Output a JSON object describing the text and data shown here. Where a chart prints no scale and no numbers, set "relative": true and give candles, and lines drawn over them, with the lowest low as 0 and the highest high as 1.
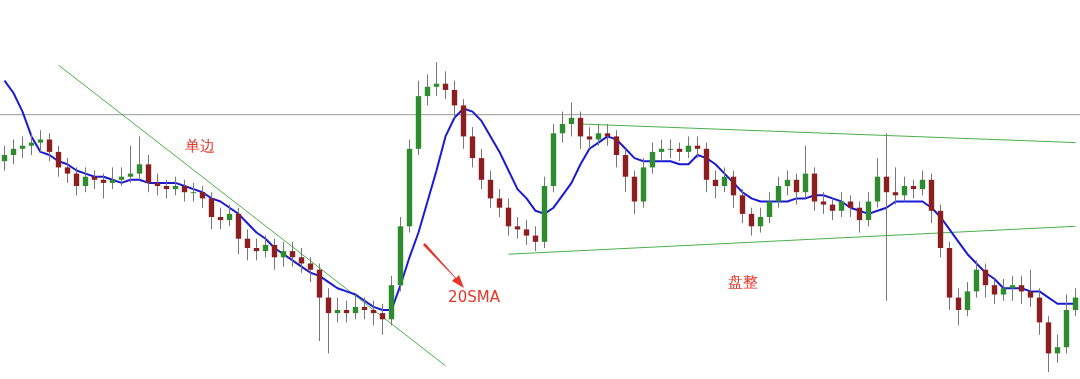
{
  "chart_data": {
    "type": "candlestick",
    "relative": true,
    "tick_labels": false,
    "categories": [
      null,
      null,
      null,
      null,
      null,
      null,
      null,
      null,
      null,
      null,
      null,
      null,
      null,
      null,
      null,
      null,
      null,
      null,
      null,
      null,
      null,
      null,
      null,
      null,
      null,
      null,
      null,
      null,
      null,
      null,
      null,
      null,
      null,
      null,
      null,
      null,
      null,
      null,
      null,
      null,
      null,
      null,
      null,
      null,
      null,
      null,
      null,
      null,
      null,
      null,
      null,
      null,
      null,
      null,
      null,
      null,
      null,
      null,
      null,
      null,
      null,
      null,
      null,
      null,
      null,
      null,
      null,
      null,
      null,
      null,
      null,
      null,
      null,
      null,
      null,
      null,
      null,
      null,
      null,
      null,
      null,
      null,
      null,
      null,
      null,
      null,
      null,
      null,
      null,
      null,
      null,
      null,
      null,
      null,
      null,
      null,
      null,
      null,
      null,
      null,
      null,
      null,
      null,
      null,
      null,
      null,
      null,
      null,
      null,
      null,
      null,
      null,
      null,
      null,
      null,
      null,
      null,
      null,
      null,
      null
    ],
    "ohlc": [
      [
        0.68,
        0.73,
        0.65,
        0.7
      ],
      [
        0.7,
        0.75,
        0.67,
        0.72
      ],
      [
        0.72,
        0.76,
        0.69,
        0.73
      ],
      [
        0.73,
        0.77,
        0.7,
        0.74
      ],
      [
        0.74,
        0.78,
        0.71,
        0.75
      ],
      [
        0.75,
        0.77,
        0.68,
        0.71
      ],
      [
        0.71,
        0.73,
        0.63,
        0.66
      ],
      [
        0.66,
        0.69,
        0.61,
        0.64
      ],
      [
        0.64,
        0.66,
        0.57,
        0.6
      ],
      [
        0.6,
        0.66,
        0.58,
        0.63
      ],
      [
        0.63,
        0.65,
        0.59,
        0.62
      ],
      [
        0.62,
        0.64,
        0.56,
        0.61
      ],
      [
        0.61,
        0.66,
        0.59,
        0.62
      ],
      [
        0.62,
        0.66,
        0.6,
        0.63
      ],
      [
        0.63,
        0.73,
        0.61,
        0.64
      ],
      [
        0.64,
        0.76,
        0.62,
        0.67
      ],
      [
        0.67,
        0.7,
        0.58,
        0.61
      ],
      [
        0.61,
        0.64,
        0.57,
        0.6
      ],
      [
        0.6,
        0.62,
        0.56,
        0.59
      ],
      [
        0.59,
        0.63,
        0.57,
        0.6
      ],
      [
        0.6,
        0.62,
        0.55,
        0.58
      ],
      [
        0.58,
        0.61,
        0.55,
        0.58
      ],
      [
        0.58,
        0.6,
        0.53,
        0.56
      ],
      [
        0.56,
        0.58,
        0.46,
        0.5
      ],
      [
        0.5,
        0.53,
        0.46,
        0.49
      ],
      [
        0.49,
        0.54,
        0.47,
        0.51
      ],
      [
        0.51,
        0.53,
        0.38,
        0.43
      ],
      [
        0.43,
        0.46,
        0.36,
        0.4
      ],
      [
        0.4,
        0.43,
        0.36,
        0.39
      ],
      [
        0.39,
        0.44,
        0.37,
        0.41
      ],
      [
        0.41,
        0.43,
        0.33,
        0.37
      ],
      [
        0.37,
        0.42,
        0.34,
        0.39
      ],
      [
        0.39,
        0.42,
        0.34,
        0.37
      ],
      [
        0.37,
        0.4,
        0.32,
        0.35
      ],
      [
        0.35,
        0.37,
        0.29,
        0.33
      ],
      [
        0.33,
        0.35,
        0.1,
        0.24
      ],
      [
        0.24,
        0.27,
        0.06,
        0.19
      ],
      [
        0.19,
        0.24,
        0.16,
        0.2
      ],
      [
        0.2,
        0.23,
        0.16,
        0.19
      ],
      [
        0.19,
        0.25,
        0.17,
        0.21
      ],
      [
        0.21,
        0.24,
        0.17,
        0.2
      ],
      [
        0.2,
        0.23,
        0.15,
        0.19
      ],
      [
        0.19,
        0.22,
        0.12,
        0.17
      ],
      [
        0.17,
        0.31,
        0.15,
        0.28
      ],
      [
        0.28,
        0.5,
        0.26,
        0.47
      ],
      [
        0.47,
        0.75,
        0.45,
        0.72
      ],
      [
        0.72,
        0.94,
        0.7,
        0.89
      ],
      [
        0.89,
        0.96,
        0.86,
        0.92
      ],
      [
        0.92,
        1,
        0.89,
        0.93
      ],
      [
        0.93,
        0.97,
        0.88,
        0.91
      ],
      [
        0.91,
        0.94,
        0.82,
        0.86
      ],
      [
        0.86,
        0.88,
        0.72,
        0.76
      ],
      [
        0.76,
        0.79,
        0.66,
        0.69
      ],
      [
        0.69,
        0.72,
        0.59,
        0.62
      ],
      [
        0.62,
        0.65,
        0.53,
        0.56
      ],
      [
        0.56,
        0.59,
        0.5,
        0.53
      ],
      [
        0.53,
        0.56,
        0.44,
        0.47
      ],
      [
        0.47,
        0.5,
        0.43,
        0.46
      ],
      [
        0.46,
        0.49,
        0.41,
        0.44
      ],
      [
        0.44,
        0.47,
        0.39,
        0.42
      ],
      [
        0.42,
        0.63,
        0.4,
        0.6
      ],
      [
        0.6,
        0.8,
        0.58,
        0.77
      ],
      [
        0.77,
        0.84,
        0.74,
        0.8
      ],
      [
        0.8,
        0.87,
        0.76,
        0.82
      ],
      [
        0.82,
        0.84,
        0.72,
        0.76
      ],
      [
        0.76,
        0.79,
        0.72,
        0.75
      ],
      [
        0.75,
        0.8,
        0.73,
        0.77
      ],
      [
        0.77,
        0.8,
        0.73,
        0.76
      ],
      [
        0.76,
        0.78,
        0.66,
        0.7
      ],
      [
        0.7,
        0.72,
        0.58,
        0.63
      ],
      [
        0.63,
        0.65,
        0.51,
        0.55
      ],
      [
        0.55,
        0.69,
        0.53,
        0.66
      ],
      [
        0.66,
        0.74,
        0.64,
        0.71
      ],
      [
        0.71,
        0.75,
        0.68,
        0.72
      ],
      [
        0.72,
        0.75,
        0.69,
        0.72
      ],
      [
        0.72,
        0.74,
        0.68,
        0.71
      ],
      [
        0.71,
        0.76,
        0.69,
        0.73
      ],
      [
        0.73,
        0.76,
        0.69,
        0.72
      ],
      [
        0.72,
        0.74,
        0.58,
        0.62
      ],
      [
        0.62,
        0.65,
        0.56,
        0.6
      ],
      [
        0.6,
        0.66,
        0.58,
        0.63
      ],
      [
        0.63,
        0.65,
        0.53,
        0.57
      ],
      [
        0.57,
        0.59,
        0.48,
        0.51
      ],
      [
        0.51,
        0.53,
        0.44,
        0.47
      ],
      [
        0.47,
        0.53,
        0.45,
        0.5
      ],
      [
        0.5,
        0.58,
        0.48,
        0.55
      ],
      [
        0.55,
        0.63,
        0.53,
        0.6
      ],
      [
        0.6,
        0.65,
        0.57,
        0.62
      ],
      [
        0.62,
        0.64,
        0.54,
        0.58
      ],
      [
        0.58,
        0.73,
        0.56,
        0.64
      ],
      [
        0.64,
        0.66,
        0.52,
        0.55
      ],
      [
        0.55,
        0.58,
        0.51,
        0.54
      ],
      [
        0.54,
        0.56,
        0.49,
        0.52
      ],
      [
        0.52,
        0.58,
        0.5,
        0.55
      ],
      [
        0.55,
        0.57,
        0.5,
        0.53
      ],
      [
        0.53,
        0.55,
        0.45,
        0.49
      ],
      [
        0.49,
        0.58,
        0.47,
        0.55
      ],
      [
        0.55,
        0.69,
        0.53,
        0.63
      ],
      [
        0.63,
        0.77,
        0.23,
        0.58
      ],
      [
        0.58,
        0.66,
        0.54,
        0.57
      ],
      [
        0.57,
        0.63,
        0.55,
        0.6
      ],
      [
        0.6,
        0.62,
        0.56,
        0.59
      ],
      [
        0.59,
        0.65,
        0.57,
        0.62
      ],
      [
        0.62,
        0.64,
        0.48,
        0.52
      ],
      [
        0.52,
        0.54,
        0.37,
        0.4
      ],
      [
        0.4,
        0.42,
        0.2,
        0.24
      ],
      [
        0.24,
        0.27,
        0.15,
        0.2
      ],
      [
        0.2,
        0.29,
        0.18,
        0.26
      ],
      [
        0.26,
        0.36,
        0.24,
        0.33
      ],
      [
        0.33,
        0.35,
        0.24,
        0.28
      ],
      [
        0.28,
        0.3,
        0.22,
        0.25
      ],
      [
        0.25,
        0.3,
        0.23,
        0.27
      ],
      [
        0.27,
        0.31,
        0.23,
        0.28
      ],
      [
        0.28,
        0.31,
        0.22,
        0.26
      ],
      [
        0.26,
        0.33,
        0.21,
        0.24
      ],
      [
        0.24,
        0.27,
        0.12,
        0.16
      ],
      [
        0.16,
        0.18,
        0,
        0.06
      ],
      [
        0.06,
        0.12,
        0.03,
        0.08
      ],
      [
        0.08,
        0.25,
        0.06,
        0.2
      ],
      [
        0.2,
        0.27,
        0.18,
        0.24
      ]
    ],
    "colors": [
      "#2e8b2e",
      "#2e8b2e",
      "#2e8b2e",
      "#2e8b2e",
      "#2e8b2e",
      "#8b1e1e",
      "#8b1e1e",
      "#8b1e1e",
      "#8b1e1e",
      "#2e8b2e",
      "#8b1e1e",
      "#8b1e1e",
      "#2e8b2e",
      "#2e8b2e",
      "#2e8b2e",
      "#2e8b2e",
      "#8b1e1e",
      "#8b1e1e",
      "#8b1e1e",
      "#2e8b2e",
      "#8b1e1e",
      "#2e8b2e",
      "#8b1e1e",
      "#8b1e1e",
      "#8b1e1e",
      "#2e8b2e",
      "#8b1e1e",
      "#8b1e1e",
      "#8b1e1e",
      "#2e8b2e",
      "#8b1e1e",
      "#2e8b2e",
      "#8b1e1e",
      "#8b1e1e",
      "#8b1e1e",
      "#8b1e1e",
      "#8b1e1e",
      "#2e8b2e",
      "#8b1e1e",
      "#2e8b2e",
      "#8b1e1e",
      "#8b1e1e",
      "#8b1e1e",
      "#2e8b2e",
      "#2e8b2e",
      "#2e8b2e",
      "#2e8b2e",
      "#2e8b2e",
      "#2e8b2e",
      "#8b1e1e",
      "#8b1e1e",
      "#8b1e1e",
      "#8b1e1e",
      "#8b1e1e",
      "#8b1e1e",
      "#8b1e1e",
      "#8b1e1e",
      "#8b1e1e",
      "#8b1e1e",
      "#8b1e1e",
      "#2e8b2e",
      "#2e8b2e",
      "#2e8b2e",
      "#2e8b2e",
      "#8b1e1e",
      "#8b1e1e",
      "#2e8b2e",
      "#8b1e1e",
      "#8b1e1e",
      "#8b1e1e",
      "#8b1e1e",
      "#2e8b2e",
      "#2e8b2e",
      "#2e8b2e",
      "#2e8b2e",
      "#8b1e1e",
      "#2e8b2e",
      "#8b1e1e",
      "#8b1e1e",
      "#8b1e1e",
      "#2e8b2e",
      "#8b1e1e",
      "#8b1e1e",
      "#8b1e1e",
      "#2e8b2e",
      "#2e8b2e",
      "#2e8b2e",
      "#2e8b2e",
      "#8b1e1e",
      "#2e8b2e",
      "#8b1e1e",
      "#8b1e1e",
      "#8b1e1e",
      "#2e8b2e",
      "#8b1e1e",
      "#8b1e1e",
      "#2e8b2e",
      "#2e8b2e",
      "#8b1e1e",
      "#8b1e1e",
      "#2e8b2e",
      "#8b1e1e",
      "#2e8b2e",
      "#8b1e1e",
      "#8b1e1e",
      "#8b1e1e",
      "#8b1e1e",
      "#2e8b2e",
      "#2e8b2e",
      "#8b1e1e",
      "#8b1e1e",
      "#2e8b2e",
      "#2e8b2e",
      "#8b1e1e",
      "#8b1e1e",
      "#8b1e1e",
      "#8b1e1e",
      "#2e8b2e",
      "#2e8b2e",
      "#2e8b2e"
    ],
    "series": [
      {
        "type": "line",
        "name": "20SMA",
        "color": "#1a1ad6",
        "values": [
          0.94,
          0.9,
          0.84,
          0.76,
          0.71,
          0.7,
          0.68,
          0.67,
          0.65,
          0.64,
          0.63,
          0.63,
          0.62,
          0.61,
          0.62,
          0.62,
          0.61,
          0.61,
          0.61,
          0.61,
          0.6,
          0.59,
          0.58,
          0.56,
          0.55,
          0.53,
          0.51,
          0.48,
          0.45,
          0.43,
          0.4,
          0.38,
          0.36,
          0.34,
          0.32,
          0.31,
          0.29,
          0.27,
          0.26,
          0.25,
          0.23,
          0.21,
          0.2,
          0.2,
          0.28,
          0.37,
          0.45,
          0.55,
          0.65,
          0.76,
          0.82,
          0.85,
          0.84,
          0.81,
          0.76,
          0.71,
          0.65,
          0.59,
          0.56,
          0.52,
          0.51,
          0.53,
          0.57,
          0.61,
          0.67,
          0.72,
          0.74,
          0.76,
          0.75,
          0.72,
          0.69,
          0.68,
          0.68,
          0.68,
          0.68,
          0.67,
          0.67,
          0.7,
          0.69,
          0.67,
          0.64,
          0.61,
          0.58,
          0.56,
          0.55,
          0.55,
          0.55,
          0.55,
          0.56,
          0.56,
          0.57,
          0.57,
          0.56,
          0.55,
          0.53,
          0.52,
          0.51,
          0.52,
          0.53,
          0.55,
          0.55,
          0.55,
          0.55,
          0.53,
          0.5,
          0.46,
          0.42,
          0.38,
          0.35,
          0.32,
          0.3,
          0.27,
          0.27,
          0.27,
          0.26,
          0.26,
          0.24,
          0.22,
          0.22,
          0.22
        ]
      },
      {
        "type": "line",
        "color": "#4caf4c",
        "values": [
          null,
          null,
          null,
          null,
          null,
          null,
          0.99,
          null,
          null,
          null,
          null,
          null,
          null,
          null,
          null,
          null,
          null,
          null,
          null,
          null,
          null,
          null,
          null,
          null,
          null,
          null,
          null,
          null,
          null,
          null,
          null,
          null,
          null,
          null,
          null,
          null,
          null,
          null,
          null,
          null,
          null,
          null,
          null,
          null,
          null,
          null,
          null,
          null,
          null,
          0.02,
          null,
          null,
          null,
          null,
          null,
          null,
          null,
          null,
          null,
          null,
          null,
          null,
          null,
          null,
          null,
          null,
          null,
          null,
          null,
          null,
          null,
          null,
          null,
          null,
          null,
          null,
          null,
          null,
          null,
          null,
          null,
          null,
          null,
          null,
          null,
          null,
          null,
          null,
          null,
          null,
          null,
          null,
          null,
          null,
          null,
          null,
          null,
          null,
          null,
          null,
          null,
          null,
          null,
          null,
          null,
          null,
          null,
          null,
          null,
          null,
          null,
          null,
          null,
          null,
          null,
          null,
          null,
          null,
          null,
          null
        ]
      },
      {
        "type": "line",
        "color": "#4caf4c",
        "values": [
          null,
          null,
          null,
          null,
          null,
          null,
          null,
          null,
          null,
          null,
          null,
          null,
          null,
          null,
          null,
          null,
          null,
          null,
          null,
          null,
          null,
          null,
          null,
          null,
          null,
          null,
          null,
          null,
          null,
          null,
          null,
          null,
          null,
          null,
          null,
          null,
          null,
          null,
          null,
          null,
          null,
          null,
          null,
          null,
          null,
          null,
          null,
          null,
          null,
          null,
          null,
          null,
          null,
          null,
          null,
          null,
          null,
          null,
          null,
          null,
          null,
          null,
          null,
          null,
          0.8,
          null,
          null,
          null,
          null,
          null,
          null,
          null,
          null,
          null,
          null,
          null,
          null,
          null,
          null,
          null,
          null,
          null,
          null,
          null,
          null,
          null,
          null,
          null,
          null,
          null,
          null,
          null,
          null,
          null,
          null,
          null,
          null,
          null,
          null,
          null,
          null,
          null,
          null,
          null,
          null,
          null,
          null,
          null,
          null,
          null,
          null,
          null,
          null,
          null,
          null,
          null,
          null,
          null,
          null,
          0.74
        ]
      },
      {
        "type": "line",
        "color": "#4caf4c",
        "values": [
          null,
          null,
          null,
          null,
          null,
          null,
          null,
          null,
          null,
          null,
          null,
          null,
          null,
          null,
          null,
          null,
          null,
          null,
          null,
          null,
          null,
          null,
          null,
          null,
          null,
          null,
          null,
          null,
          null,
          null,
          null,
          null,
          null,
          null,
          null,
          null,
          null,
          null,
          null,
          null,
          null,
          null,
          null,
          null,
          null,
          null,
          null,
          null,
          null,
          null,
          null,
          null,
          null,
          null,
          null,
          null,
          0.38,
          null,
          null,
          null,
          null,
          null,
          null,
          null,
          null,
          null,
          null,
          null,
          null,
          null,
          null,
          null,
          null,
          null,
          null,
          null,
          null,
          null,
          null,
          null,
          null,
          null,
          null,
          null,
          null,
          null,
          null,
          null,
          null,
          null,
          null,
          null,
          null,
          null,
          null,
          null,
          null,
          null,
          null,
          null,
          null,
          null,
          null,
          null,
          null,
          null,
          null,
          null,
          null,
          null,
          null,
          null,
          null,
          null,
          null,
          null,
          null,
          null,
          null,
          0.47
        ]
      }
    ],
    "ref_lines": [
      {
        "axis": "y",
        "value": 0.83,
        "color": "#999999"
      }
    ],
    "annotations": [
      "单边",
      "盘整"
    ]
  }
}
